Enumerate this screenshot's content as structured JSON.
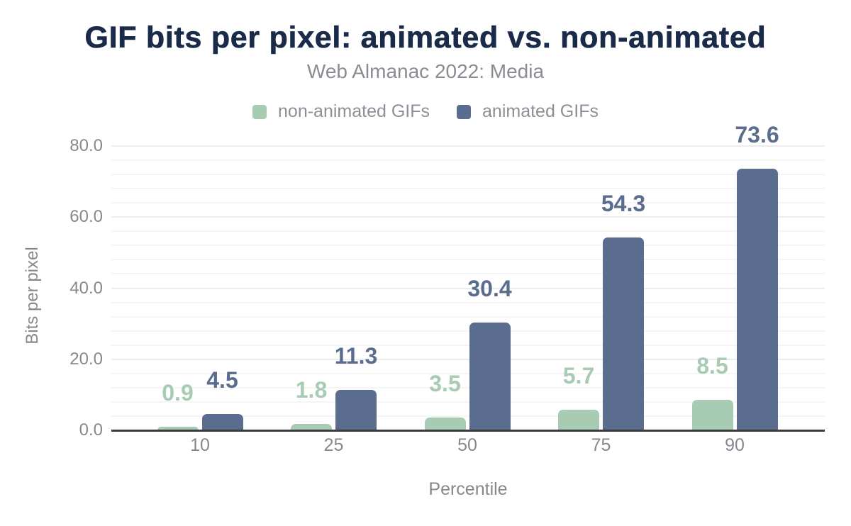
{
  "title": "GIF bits per pixel: animated vs. non-animated",
  "subtitle": "Web Almanac 2022: Media",
  "chart_data": {
    "type": "bar",
    "categories": [
      "10",
      "25",
      "50",
      "75",
      "90"
    ],
    "series": [
      {
        "name": "non-animated GIFs",
        "color": "#a8cbb4",
        "values": [
          0.9,
          1.8,
          3.5,
          5.7,
          8.5
        ]
      },
      {
        "name": "animated GIFs",
        "color": "#5b6d8e",
        "values": [
          4.5,
          11.3,
          30.4,
          54.3,
          73.6
        ]
      }
    ],
    "xlabel": "Percentile",
    "ylabel": "Bits per pixel",
    "ylim": [
      0,
      80
    ],
    "yticks": [
      0,
      20,
      40,
      60,
      80
    ],
    "ytick_labels": [
      "0.0",
      "20.0",
      "40.0",
      "60.0",
      "80.0"
    ],
    "grid": true,
    "legend_position": "top"
  },
  "colors": {
    "title": "#1a2b49",
    "muted_text": "#85898e",
    "axis_line": "#3a3b3e",
    "grid_minor": "#f5f5f6",
    "grid_major": "#ebeced"
  }
}
